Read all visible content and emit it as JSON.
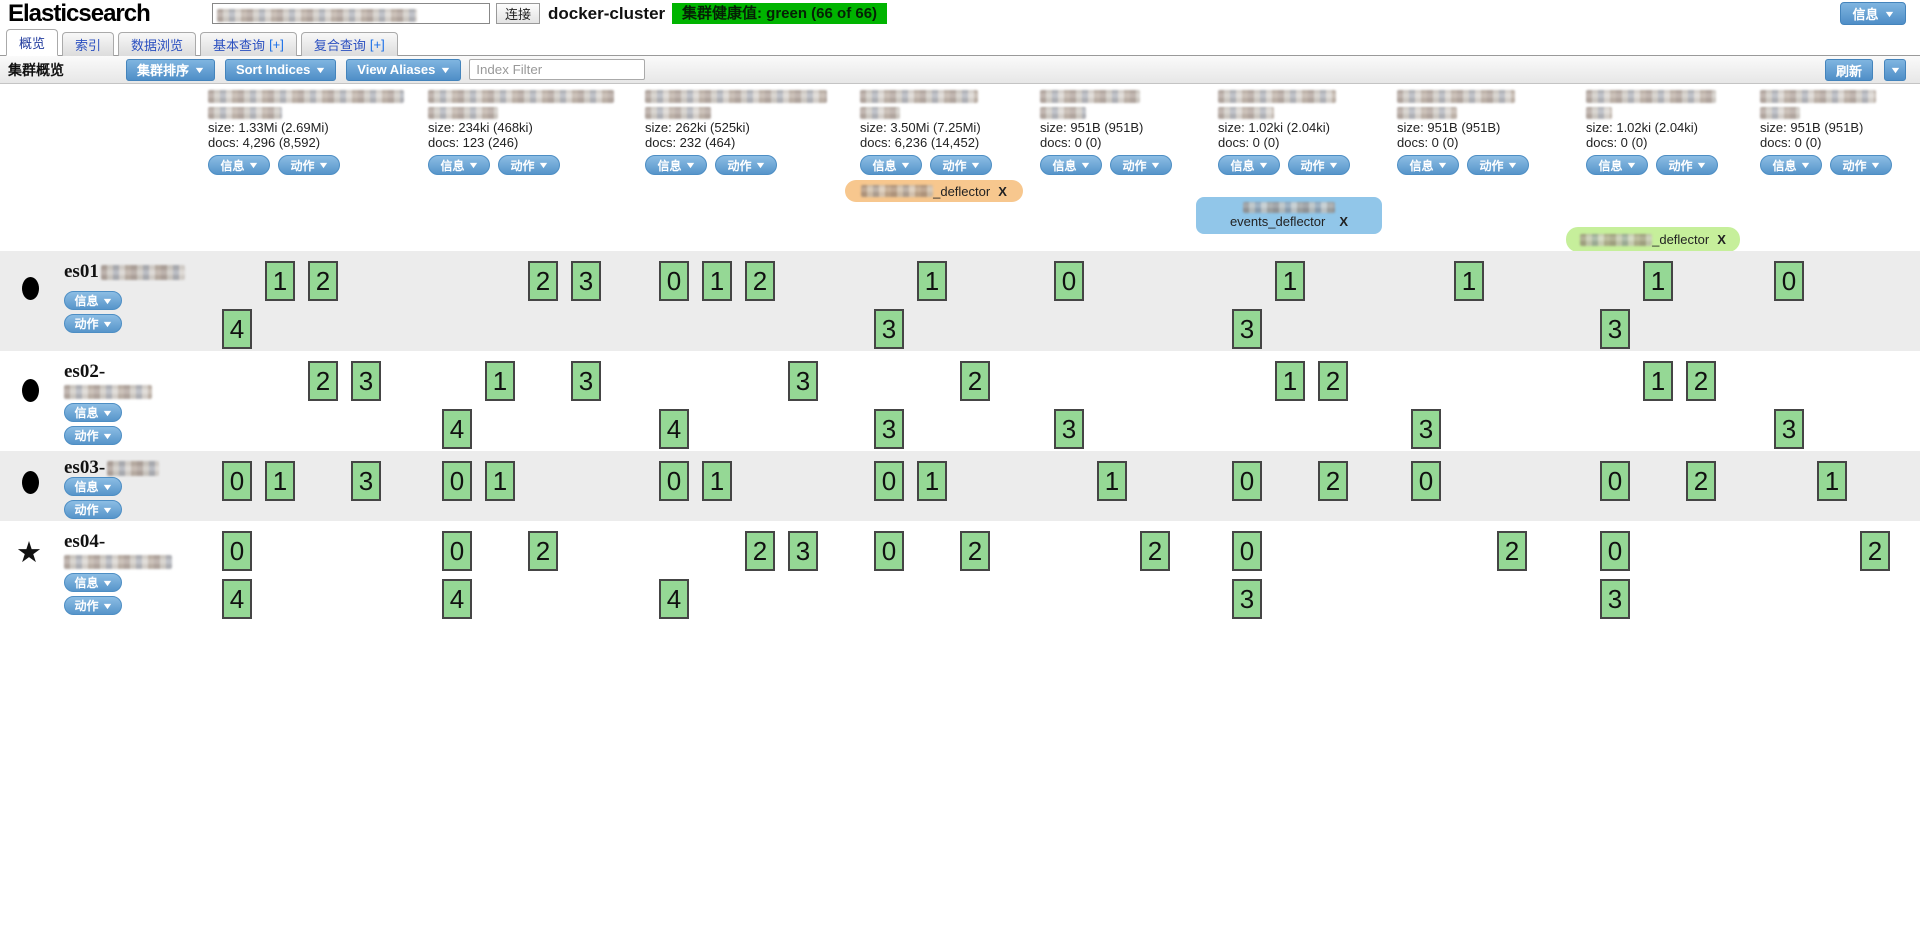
{
  "header": {
    "app_title": "Elasticsearch",
    "connect_button": "连接",
    "cluster_name": "docker-cluster",
    "health_badge": "集群健康值: green (66 of 66)",
    "health_color": "#00b400",
    "info_button": "信息"
  },
  "tabs": [
    {
      "label": "概览",
      "plus": "",
      "active": true
    },
    {
      "label": "索引",
      "plus": "",
      "active": false
    },
    {
      "label": "数据浏览",
      "plus": "",
      "active": false
    },
    {
      "label": "基本查询",
      "plus": "[+]",
      "active": false
    },
    {
      "label": "复合查询",
      "plus": "[+]",
      "active": false
    }
  ],
  "toolbar": {
    "title": "集群概览",
    "cluster_sort_button": "集群排序",
    "sort_indices_button": "Sort Indices",
    "view_aliases_button": "View Aliases",
    "index_filter_placeholder": "Index Filter",
    "refresh_button": "刷新"
  },
  "common_buttons": {
    "info": "信息",
    "actions": "动作"
  },
  "indices": [
    {
      "name_redacted": true,
      "blur_widths": [
        196,
        74
      ],
      "size": "size: 1.33Mi (2.69Mi)",
      "docs": "docs: 4,296 (8,592)"
    },
    {
      "name_redacted": true,
      "blur_widths": [
        186,
        70
      ],
      "size": "size: 234ki (468ki)",
      "docs": "docs: 123 (246)"
    },
    {
      "name_redacted": true,
      "blur_widths": [
        182,
        66
      ],
      "size": "size: 262ki (525ki)",
      "docs": "docs: 232 (464)"
    },
    {
      "name_redacted": true,
      "blur_widths": [
        118,
        40
      ],
      "size": "size: 3.50Mi (7.25Mi)",
      "docs": "docs: 6,236 (14,452)"
    },
    {
      "name_redacted": true,
      "blur_widths": [
        100,
        46
      ],
      "size": "size: 951B (951B)",
      "docs": "docs: 0 (0)"
    },
    {
      "name_redacted": true,
      "blur_widths": [
        118,
        56
      ],
      "size": "size: 1.02ki (2.04ki)",
      "docs": "docs: 0 (0)"
    },
    {
      "name_redacted": true,
      "blur_widths": [
        118,
        60
      ],
      "size": "size: 951B (951B)",
      "docs": "docs: 0 (0)"
    },
    {
      "name_redacted": true,
      "blur_widths": [
        130,
        26
      ],
      "size": "size: 1.02ki (2.04ki)",
      "docs": "docs: 0 (0)"
    },
    {
      "name_redacted": true,
      "blur_widths": [
        116,
        40
      ],
      "size": "size: 951B (951B)",
      "docs": "docs: 0 (0)"
    }
  ],
  "aliases": [
    {
      "visible_text": "_deflector",
      "prefix_redacted": true,
      "close": "X",
      "color": "#f7c78e",
      "lines": 1
    },
    {
      "visible_text": "events_deflector",
      "prefix_redacted": true,
      "close": "X",
      "color": "#91c6e9",
      "lines": 2
    },
    {
      "visible_text": "_deflector",
      "prefix_redacted": true,
      "close": "X",
      "color": "#c6ef9b",
      "lines": 1
    }
  ],
  "grid": {
    "slots_per_line": [
      4,
      4,
      4,
      3,
      3,
      3,
      3,
      3,
      3
    ],
    "shard_color": "#95d895"
  },
  "nodes": [
    {
      "name": "es01",
      "name_suffix_redacted": true,
      "icon": "circle",
      "two_line_label": false,
      "cells": [
        [
          1,
          2,
          4
        ],
        [
          2,
          3
        ],
        [
          0,
          1,
          2
        ],
        [
          1,
          3
        ],
        [
          0
        ],
        [
          1,
          3
        ],
        [
          1
        ],
        [
          1,
          3
        ],
        [
          0
        ]
      ]
    },
    {
      "name": "es02-",
      "name_suffix_redacted": true,
      "icon": "circle",
      "two_line_label": true,
      "cells": [
        [
          2,
          3
        ],
        [
          1,
          3,
          4
        ],
        [
          3,
          4
        ],
        [
          2,
          3
        ],
        [
          3
        ],
        [
          1,
          2
        ],
        [
          3
        ],
        [
          1,
          2
        ],
        [
          3
        ]
      ]
    },
    {
      "name": "es03-",
      "name_suffix_redacted": true,
      "icon": "circle",
      "two_line_label": false,
      "cells": [
        [
          0,
          1,
          3
        ],
        [
          0,
          1
        ],
        [
          0,
          1
        ],
        [
          0,
          1
        ],
        [
          1
        ],
        [
          0,
          2
        ],
        [
          0
        ],
        [
          0,
          2
        ],
        [
          1
        ]
      ]
    },
    {
      "name": "es04-",
      "name_suffix_redacted": true,
      "icon": "star",
      "two_line_label": true,
      "cells": [
        [
          0,
          4
        ],
        [
          0,
          2,
          4
        ],
        [
          2,
          3,
          4
        ],
        [
          0,
          2
        ],
        [
          2
        ],
        [
          0,
          3
        ],
        [
          2
        ],
        [
          0,
          3
        ],
        [
          2
        ]
      ]
    }
  ]
}
